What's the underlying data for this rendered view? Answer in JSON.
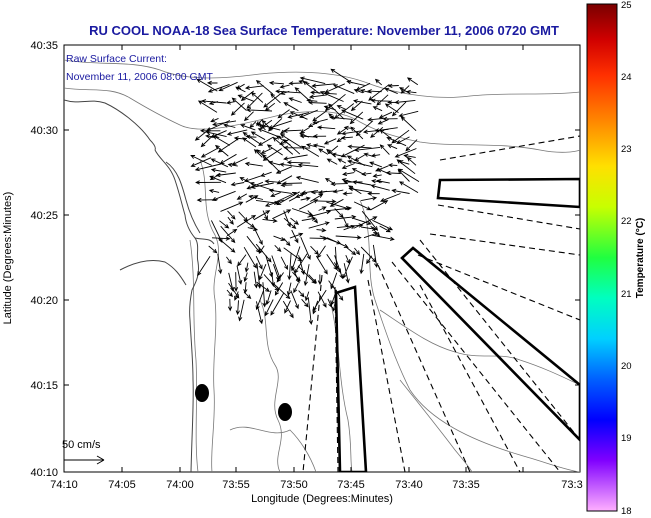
{
  "title": "RU COOL  NOAA-18  Sea Surface Temperature:  November 11, 2006 0720 GMT",
  "overlay": {
    "line1": "Raw Surface Current:",
    "line2": "November 11, 2006 08:00 GMT"
  },
  "scale_label": "50 cm/s",
  "xlabel": "Longitude (Degrees:Minutes)",
  "ylabel": "Latitude (Degrees:Minutes)",
  "x_ticks": [
    "74:10",
    "74:05",
    "74:00",
    "73:55",
    "73:50",
    "73:45",
    "73:40",
    "73:35",
    "73:3"
  ],
  "y_ticks": [
    "40:35",
    "40:30",
    "40:25",
    "40:20",
    "40:15",
    "40:10"
  ],
  "colorbar": {
    "label": "Temperature (°C)",
    "ticks": [
      "25",
      "24",
      "23",
      "22",
      "21",
      "20",
      "19",
      "18"
    ],
    "colors": [
      "#8b0000",
      "#ff0000",
      "#ff8c00",
      "#ffff00",
      "#9acd32",
      "#00ff66",
      "#00ffff",
      "#0080ff",
      "#0000ff",
      "#8000ff",
      "#ff66ff"
    ]
  },
  "colors": {
    "title": "#1a1aa0",
    "land_line": "#555555",
    "arrow": "#000000"
  }
}
